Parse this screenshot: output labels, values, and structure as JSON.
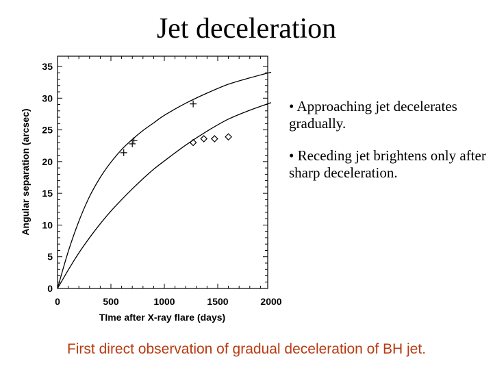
{
  "slide": {
    "title": "Jet deceleration",
    "bullets": [
      "• Approaching jet decelerates gradually.",
      "• Receding jet brightens only after sharp deceleration."
    ],
    "footer": "First direct observation of gradual deceleration of BH jet.",
    "footer_color": "#b83a10"
  },
  "chart_data": {
    "type": "scatter",
    "xlabel": "TIme after X-ray flare (days)",
    "ylabel": "Angular separation (arcsec)",
    "xlim": [
      0,
      2000
    ],
    "ylim": [
      0,
      35
    ],
    "xticks": [
      0,
      500,
      1000,
      1500,
      2000
    ],
    "yticks": [
      0,
      5,
      10,
      15,
      20,
      25,
      30,
      35
    ],
    "grid": false,
    "series": [
      {
        "marker": "plus",
        "points": [
          [
            620,
            21.4
          ],
          [
            700,
            22.8
          ],
          [
            715,
            23.3
          ],
          [
            1270,
            29.1
          ]
        ],
        "curve": [
          [
            0,
            0
          ],
          [
            100,
            5.8
          ],
          [
            200,
            10.6
          ],
          [
            300,
            14.5
          ],
          [
            400,
            17.5
          ],
          [
            500,
            19.9
          ],
          [
            600,
            21.9
          ],
          [
            700,
            23.5
          ],
          [
            800,
            24.9
          ],
          [
            900,
            26.1
          ],
          [
            1000,
            27.3
          ],
          [
            1200,
            29.2
          ],
          [
            1400,
            30.8
          ],
          [
            1600,
            32.2
          ],
          [
            1800,
            33.2
          ],
          [
            2000,
            34.1
          ]
        ]
      },
      {
        "marker": "diamond",
        "points": [
          [
            1270,
            23.0
          ],
          [
            1370,
            23.6
          ],
          [
            1470,
            23.6
          ],
          [
            1600,
            23.9
          ]
        ],
        "curve": [
          [
            0,
            0
          ],
          [
            100,
            2.9
          ],
          [
            200,
            5.6
          ],
          [
            300,
            8.0
          ],
          [
            400,
            10.2
          ],
          [
            500,
            12.2
          ],
          [
            600,
            14.0
          ],
          [
            700,
            15.7
          ],
          [
            800,
            17.3
          ],
          [
            900,
            18.8
          ],
          [
            1000,
            20.1
          ],
          [
            1200,
            22.6
          ],
          [
            1400,
            24.8
          ],
          [
            1600,
            26.7
          ],
          [
            1800,
            28.1
          ],
          [
            2000,
            29.3
          ]
        ]
      }
    ]
  }
}
